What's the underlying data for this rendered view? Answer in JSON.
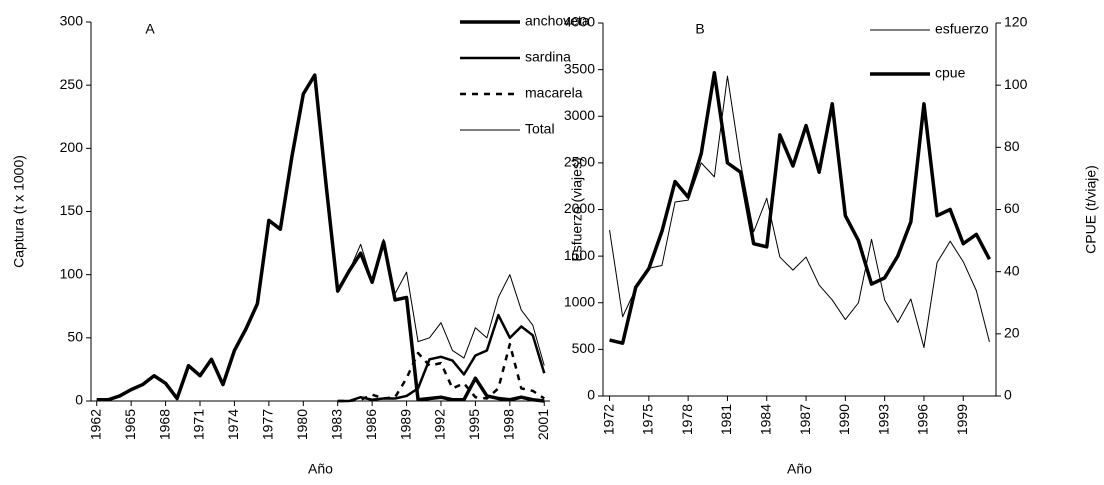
{
  "chart_data": [
    {
      "type": "line",
      "annotation": "A",
      "xlabel": "Año",
      "ylabel": "Captura (t x 1000)",
      "x": [
        1962,
        1963,
        1964,
        1965,
        1966,
        1967,
        1968,
        1969,
        1970,
        1971,
        1972,
        1973,
        1974,
        1975,
        1976,
        1977,
        1978,
        1979,
        1980,
        1981,
        1982,
        1983,
        1984,
        1985,
        1986,
        1987,
        1988,
        1989,
        1990,
        1991,
        1992,
        1993,
        1994,
        1995,
        1996,
        1997,
        1998,
        1999,
        2000,
        2001
      ],
      "xlim": [
        1961.5,
        2001.5
      ],
      "xticks": [
        1962,
        1965,
        1968,
        1971,
        1974,
        1977,
        1980,
        1983,
        1986,
        1989,
        1992,
        1995,
        1998,
        2001
      ],
      "ylim": [
        0,
        300
      ],
      "yticks": [
        0,
        50,
        100,
        150,
        200,
        250,
        300
      ],
      "legend": "upper right",
      "series": [
        {
          "name": "anchoveta",
          "color": "#000000",
          "line_width": 3.5,
          "dashed": false,
          "values": [
            1,
            1,
            4,
            9,
            13,
            20,
            14,
            2,
            28,
            20,
            33,
            13,
            40,
            57,
            77,
            143,
            136,
            193,
            243,
            258,
            170,
            87,
            103,
            117,
            94,
            126,
            80,
            82,
            1,
            2,
            3,
            1,
            1,
            18,
            4,
            2,
            1,
            3,
            1,
            0
          ]
        },
        {
          "name": "sardina",
          "color": "#000000",
          "line_width": 2.5,
          "dashed": false,
          "values": [
            null,
            null,
            null,
            null,
            null,
            null,
            null,
            null,
            null,
            null,
            null,
            null,
            null,
            null,
            null,
            null,
            null,
            null,
            null,
            null,
            null,
            0,
            0,
            3,
            1,
            2,
            2,
            4,
            10,
            33,
            35,
            32,
            21,
            36,
            40,
            68,
            50,
            59,
            52,
            22
          ]
        },
        {
          "name": "macarela",
          "color": "#000000",
          "line_width": 2.5,
          "dashed": true,
          "values": [
            null,
            null,
            null,
            null,
            null,
            null,
            null,
            null,
            null,
            null,
            null,
            null,
            null,
            null,
            null,
            null,
            null,
            null,
            null,
            null,
            null,
            0,
            0,
            1,
            5,
            2,
            3,
            18,
            38,
            28,
            30,
            10,
            14,
            3,
            2,
            10,
            45,
            10,
            8,
            2
          ]
        },
        {
          "name": "Total",
          "color": "#000000",
          "line_width": 1,
          "dashed": false,
          "values": [
            1,
            1,
            4,
            9,
            13,
            20,
            14,
            2,
            28,
            20,
            33,
            13,
            40,
            57,
            77,
            143,
            136,
            193,
            243,
            258,
            170,
            87,
            103,
            124,
            95,
            128,
            85,
            102,
            47,
            50,
            62,
            40,
            34,
            58,
            50,
            82,
            100,
            72,
            60,
            28
          ]
        }
      ]
    },
    {
      "type": "line",
      "annotation": "B",
      "xlabel": "Año",
      "ylabel": "Esfuerzo (viajes)",
      "y2label": "CPUE (t/viaje)",
      "x": [
        1972,
        1973,
        1974,
        1975,
        1976,
        1977,
        1978,
        1979,
        1980,
        1981,
        1982,
        1983,
        1984,
        1985,
        1986,
        1987,
        1988,
        1989,
        1990,
        1991,
        1992,
        1993,
        1994,
        1995,
        1996,
        1997,
        1998,
        1999,
        2000,
        2001
      ],
      "xlim": [
        1971.5,
        2001.5
      ],
      "xticks": [
        1972,
        1975,
        1978,
        1981,
        1984,
        1987,
        1990,
        1993,
        1996,
        1999
      ],
      "ylim": [
        0,
        4000
      ],
      "yticks": [
        0,
        500,
        1000,
        1500,
        2000,
        2500,
        3000,
        3500,
        4000
      ],
      "y2lim": [
        0,
        120
      ],
      "y2ticks": [
        0,
        20,
        40,
        60,
        80,
        100,
        120
      ],
      "legend": "upper right",
      "series": [
        {
          "name": "esfuerzo",
          "color": "#000000",
          "line_width": 1,
          "dashed": false,
          "values": [
            1780,
            850,
            1150,
            1370,
            1400,
            2080,
            2100,
            2500,
            2350,
            3430,
            2500,
            1760,
            2120,
            1490,
            1350,
            1490,
            1190,
            1030,
            820,
            1000,
            1680,
            1030,
            790,
            1040,
            520,
            1430,
            1660,
            1440,
            1130,
            580
          ]
        },
        {
          "name": "cpue",
          "color": "#000000",
          "line_width": 3.5,
          "dashed": false,
          "axis": "y2",
          "values": [
            18,
            17,
            35,
            41,
            53,
            69,
            64,
            78,
            104,
            75,
            72,
            49,
            48,
            84,
            74,
            87,
            72,
            94,
            58,
            50,
            36,
            38,
            45,
            56,
            94,
            58,
            60,
            49,
            52,
            44
          ]
        }
      ]
    }
  ]
}
